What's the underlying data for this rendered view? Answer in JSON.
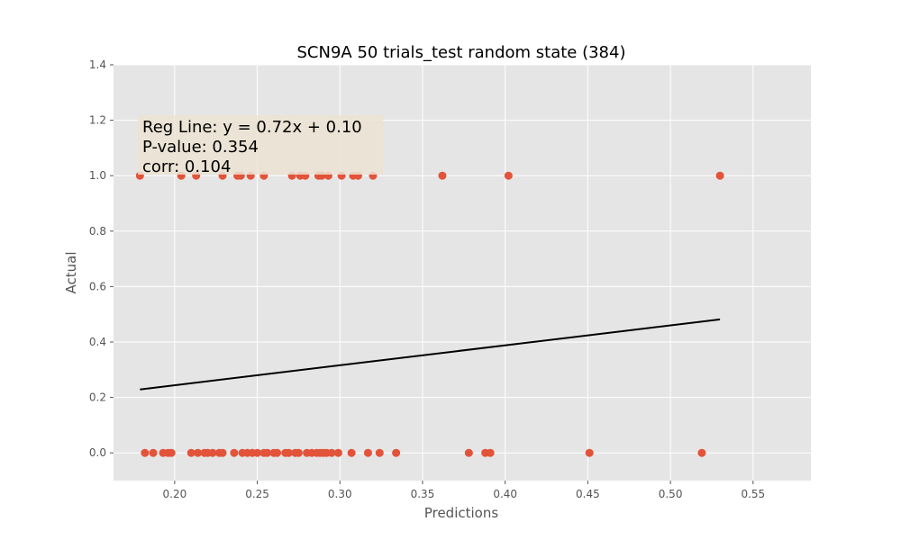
{
  "chart_data": {
    "type": "scatter",
    "title": "SCN9A 50 trials_test random state (384)",
    "xlabel": "Predictions",
    "ylabel": "Actual",
    "xlim": [
      0.163,
      0.585
    ],
    "ylim": [
      -0.1,
      1.4
    ],
    "xticks": [
      0.2,
      0.25,
      0.3,
      0.35,
      0.4,
      0.45,
      0.5,
      0.55
    ],
    "xtick_labels": [
      "0.20",
      "0.25",
      "0.30",
      "0.35",
      "0.40",
      "0.45",
      "0.50",
      "0.55"
    ],
    "yticks": [
      0.0,
      0.2,
      0.4,
      0.6,
      0.8,
      1.0,
      1.2,
      1.4
    ],
    "ytick_labels": [
      "0.0",
      "0.2",
      "0.4",
      "0.6",
      "0.8",
      "1.0",
      "1.2",
      "1.4"
    ],
    "grid": true,
    "annotation_lines": [
      "Reg Line: y = 0.72x + 0.10",
      "P-value: 0.354",
      "corr: 0.104"
    ],
    "regression": {
      "slope": 0.72,
      "intercept": 0.1,
      "x_range": [
        0.179,
        0.53
      ]
    },
    "points": [
      {
        "x": 0.179,
        "y": 1
      },
      {
        "x": 0.204,
        "y": 1
      },
      {
        "x": 0.213,
        "y": 1
      },
      {
        "x": 0.229,
        "y": 1
      },
      {
        "x": 0.238,
        "y": 1
      },
      {
        "x": 0.24,
        "y": 1
      },
      {
        "x": 0.246,
        "y": 1
      },
      {
        "x": 0.254,
        "y": 1
      },
      {
        "x": 0.271,
        "y": 1
      },
      {
        "x": 0.276,
        "y": 1
      },
      {
        "x": 0.279,
        "y": 1
      },
      {
        "x": 0.287,
        "y": 1
      },
      {
        "x": 0.289,
        "y": 1
      },
      {
        "x": 0.293,
        "y": 1
      },
      {
        "x": 0.301,
        "y": 1
      },
      {
        "x": 0.308,
        "y": 1
      },
      {
        "x": 0.311,
        "y": 1
      },
      {
        "x": 0.32,
        "y": 1
      },
      {
        "x": 0.362,
        "y": 1
      },
      {
        "x": 0.402,
        "y": 1
      },
      {
        "x": 0.53,
        "y": 1
      },
      {
        "x": 0.182,
        "y": 0
      },
      {
        "x": 0.187,
        "y": 0
      },
      {
        "x": 0.193,
        "y": 0
      },
      {
        "x": 0.196,
        "y": 0
      },
      {
        "x": 0.198,
        "y": 0
      },
      {
        "x": 0.21,
        "y": 0
      },
      {
        "x": 0.214,
        "y": 0
      },
      {
        "x": 0.218,
        "y": 0
      },
      {
        "x": 0.22,
        "y": 0
      },
      {
        "x": 0.223,
        "y": 0
      },
      {
        "x": 0.227,
        "y": 0
      },
      {
        "x": 0.229,
        "y": 0
      },
      {
        "x": 0.236,
        "y": 0
      },
      {
        "x": 0.241,
        "y": 0
      },
      {
        "x": 0.244,
        "y": 0
      },
      {
        "x": 0.247,
        "y": 0
      },
      {
        "x": 0.25,
        "y": 0
      },
      {
        "x": 0.254,
        "y": 0
      },
      {
        "x": 0.256,
        "y": 0
      },
      {
        "x": 0.26,
        "y": 0
      },
      {
        "x": 0.262,
        "y": 0
      },
      {
        "x": 0.267,
        "y": 0
      },
      {
        "x": 0.269,
        "y": 0
      },
      {
        "x": 0.273,
        "y": 0
      },
      {
        "x": 0.275,
        "y": 0
      },
      {
        "x": 0.28,
        "y": 0
      },
      {
        "x": 0.283,
        "y": 0
      },
      {
        "x": 0.286,
        "y": 0
      },
      {
        "x": 0.288,
        "y": 0
      },
      {
        "x": 0.29,
        "y": 0
      },
      {
        "x": 0.292,
        "y": 0
      },
      {
        "x": 0.295,
        "y": 0
      },
      {
        "x": 0.299,
        "y": 0
      },
      {
        "x": 0.307,
        "y": 0
      },
      {
        "x": 0.317,
        "y": 0
      },
      {
        "x": 0.324,
        "y": 0
      },
      {
        "x": 0.334,
        "y": 0
      },
      {
        "x": 0.378,
        "y": 0
      },
      {
        "x": 0.388,
        "y": 0
      },
      {
        "x": 0.391,
        "y": 0
      },
      {
        "x": 0.451,
        "y": 0
      },
      {
        "x": 0.519,
        "y": 0
      }
    ],
    "colors": {
      "plot_background": "#e5e5e5",
      "grid": "#ffffff",
      "points": "#e2533a",
      "regression_line": "#000000",
      "text": "#000000",
      "tick_text": "#555555",
      "annotation_box": "#ece3d2"
    }
  }
}
